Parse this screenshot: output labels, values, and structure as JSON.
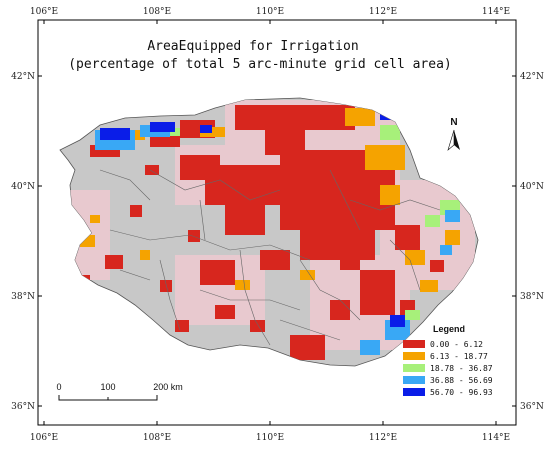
{
  "title": {
    "line1": "AreaEquipped for Irrigation",
    "line2": "(percentage of total 5 arc-minute grid cell area)"
  },
  "ticks": {
    "x": [
      "106°E",
      "108°E",
      "110°E",
      "112°E",
      "114°E"
    ],
    "y": [
      "42°N",
      "40°N",
      "38°N",
      "36°N"
    ]
  },
  "north_label": "N",
  "legend": {
    "title": "Legend",
    "items": [
      {
        "label": "0.00 - 6.12",
        "color": "#d7261e"
      },
      {
        "label": "6.13 - 18.77",
        "color": "#f5a300"
      },
      {
        "label": "18.78 - 36.87",
        "color": "#a7f07a"
      },
      {
        "label": "36.88 - 56.69",
        "color": "#39a8f5"
      },
      {
        "label": "56.70 - 96.93",
        "color": "#0a1de8"
      }
    ]
  },
  "scalebar": {
    "labels": [
      "0",
      "100",
      "200 km"
    ]
  },
  "colors": {
    "land": "#c8c8c8",
    "noirrig": "#e8c9cf",
    "frame": "#000000"
  }
}
